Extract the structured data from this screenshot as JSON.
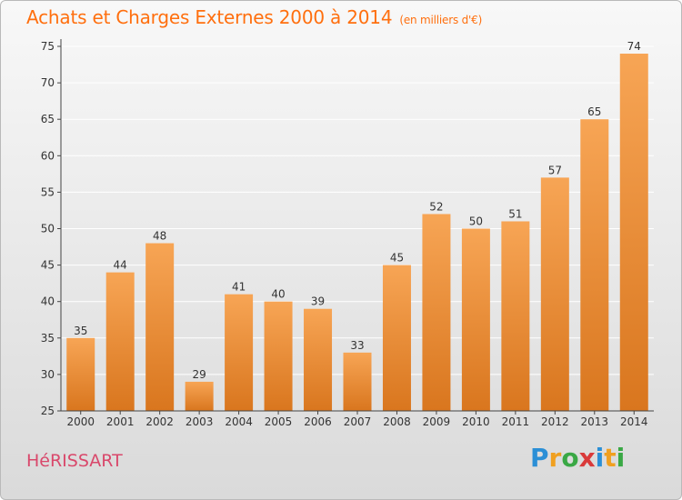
{
  "header": {
    "title": "Achats et Charges Externes 2000 à 2014",
    "subtitle": "(en milliers d'€)"
  },
  "footer": {
    "commune": "HéRISSART",
    "logo_letters": [
      "P",
      "r",
      "o",
      "x",
      "i",
      "t",
      "i"
    ],
    "logo_colors": [
      "#2b8fd6",
      "#f0a020",
      "#3aa845",
      "#d93a3a",
      "#2b8fd6",
      "#f0a020",
      "#3aa845"
    ]
  },
  "colors": {
    "bar_light": "#f7a555",
    "bar_dark": "#d9761e",
    "grid": "#ffffff",
    "axis": "#444444"
  },
  "chart_data": {
    "type": "bar",
    "categories": [
      "2000",
      "2001",
      "2002",
      "2003",
      "2004",
      "2005",
      "2006",
      "2007",
      "2008",
      "2009",
      "2010",
      "2011",
      "2012",
      "2013",
      "2014"
    ],
    "values": [
      35,
      44,
      48,
      29,
      41,
      40,
      39,
      33,
      45,
      52,
      50,
      51,
      57,
      65,
      74
    ],
    "ylim": [
      25,
      75
    ],
    "yticks": [
      25,
      30,
      35,
      40,
      45,
      50,
      55,
      60,
      65,
      70,
      75
    ],
    "grid": true,
    "data_labels": true
  }
}
